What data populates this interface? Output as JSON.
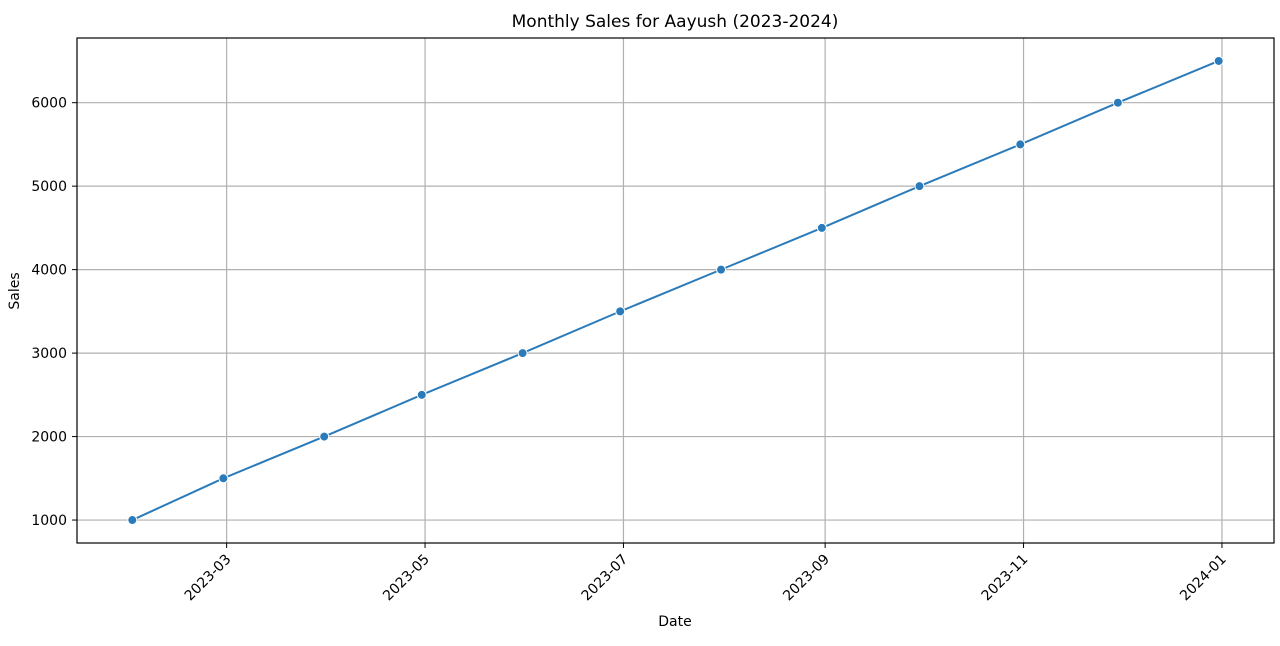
{
  "chart_data": {
    "type": "line",
    "title": "Monthly Sales for Aayush (2023-2024)",
    "xlabel": "Date",
    "ylabel": "Sales",
    "x": [
      "2023-01-31",
      "2023-02-28",
      "2023-03-31",
      "2023-04-30",
      "2023-05-31",
      "2023-06-30",
      "2023-07-31",
      "2023-08-31",
      "2023-09-30",
      "2023-10-31",
      "2023-11-30",
      "2023-12-31"
    ],
    "series": [
      {
        "values": [
          1000,
          1500,
          2000,
          2500,
          3000,
          3500,
          4000,
          4500,
          5000,
          5500,
          6000,
          6500
        ]
      }
    ],
    "xticks": [
      "2023-03",
      "2023-05",
      "2023-07",
      "2023-09",
      "2023-11",
      "2024-01"
    ],
    "yticks": [
      1000,
      2000,
      3000,
      4000,
      5000,
      6000
    ],
    "xlim": [
      "2023-01-14",
      "2024-01-17"
    ],
    "ylim": [
      725,
      6775
    ],
    "grid": true,
    "line_color": "#2b7bba",
    "grid_color": "#b0b0b0"
  }
}
